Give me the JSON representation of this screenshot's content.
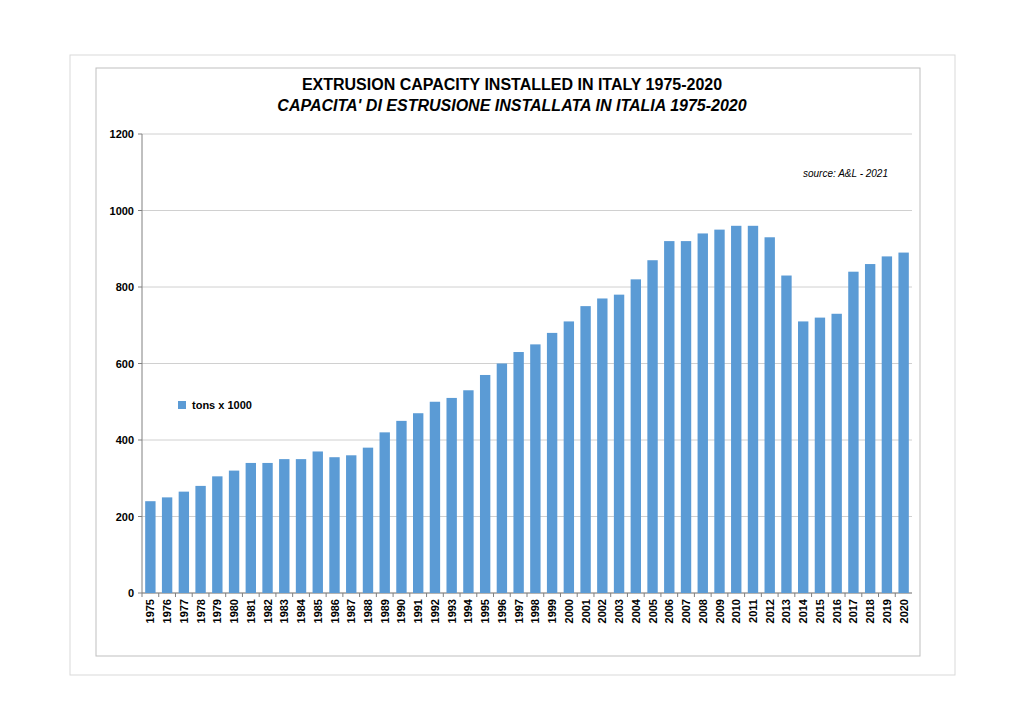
{
  "chart_data": {
    "type": "bar",
    "title": "EXTRUSION CAPACITY INSTALLED IN ITALY 1975-2020",
    "subtitle": "CAPACITA' DI ESTRUSIONE INSTALLATA IN ITALIA 1975-2020",
    "annotations": [
      "source: A&L - 2021"
    ],
    "categories": [
      "1975",
      "1976",
      "1977",
      "1978",
      "1979",
      "1980",
      "1981",
      "1982",
      "1983",
      "1984",
      "1985",
      "1986",
      "1987",
      "1988",
      "1989",
      "1990",
      "1991",
      "1992",
      "1993",
      "1994",
      "1995",
      "1996",
      "1997",
      "1998",
      "1999",
      "2000",
      "2001",
      "2002",
      "2003",
      "2004",
      "2005",
      "2006",
      "2007",
      "2008",
      "2009",
      "2010",
      "2011",
      "2012",
      "2013",
      "2014",
      "2015",
      "2016",
      "2017",
      "2018",
      "2019",
      "2020"
    ],
    "series": [
      {
        "name": "tons x 1000",
        "color": "#5b9bd5",
        "values": [
          240,
          250,
          265,
          280,
          305,
          320,
          340,
          340,
          350,
          350,
          370,
          355,
          360,
          380,
          420,
          450,
          470,
          500,
          510,
          530,
          570,
          600,
          630,
          650,
          680,
          710,
          750,
          770,
          780,
          820,
          870,
          920,
          920,
          940,
          950,
          960,
          960,
          930,
          830,
          710,
          720,
          730,
          840,
          860,
          880,
          890
        ]
      }
    ],
    "ylim": [
      0,
      1200
    ],
    "yticks": [
      0,
      200,
      400,
      600,
      800,
      1000,
      1200
    ],
    "grid": true,
    "legend": "left"
  }
}
